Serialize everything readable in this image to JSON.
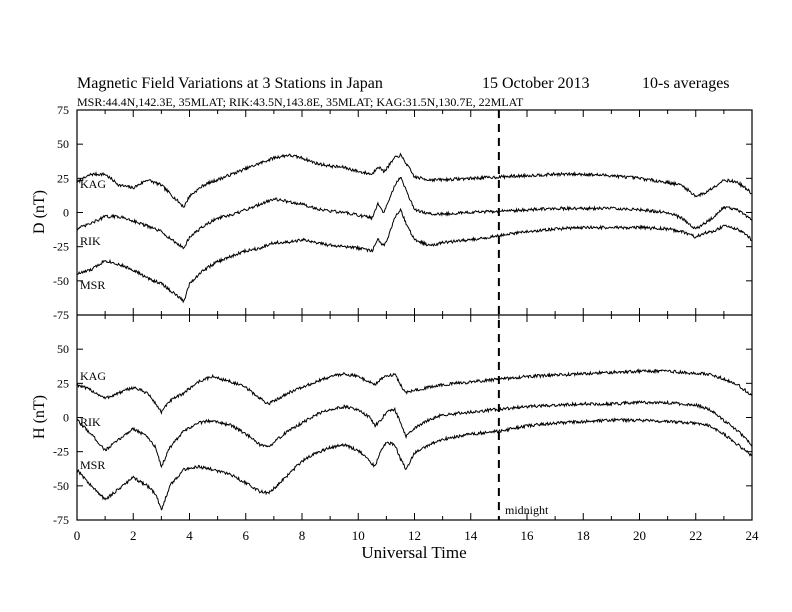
{
  "header": {
    "title": "Magnetic Field Variations at 3 Stations in Japan",
    "date": "15 October 2013",
    "averaging": "10-s averages",
    "stations_line": "MSR:44.4N,142.3E, 35MLAT;  RIK:43.5N,143.8E, 35MLAT;  KAG:31.5N,130.7E, 22MLAT"
  },
  "midnight_label": "midnight",
  "chart_data": [
    {
      "type": "line",
      "panel": "top",
      "ylabel": "D (nT)",
      "ylim": [
        -75,
        75
      ],
      "yticks": [
        75,
        50,
        25,
        0,
        -25,
        -50,
        -75
      ],
      "xlim": [
        0,
        24
      ],
      "x": [
        0,
        0.5,
        1,
        1.5,
        2,
        2.5,
        3,
        3.5,
        3.8,
        4,
        4.5,
        5,
        5.5,
        6,
        6.5,
        7,
        7.5,
        8,
        8.5,
        9,
        9.5,
        10,
        10.5,
        10.7,
        10.9,
        11,
        11.3,
        11.5,
        11.7,
        12,
        12.5,
        13,
        14,
        15,
        16,
        17,
        18,
        19,
        20,
        21,
        21.5,
        22,
        22.3,
        22.6,
        23,
        23.5,
        24
      ],
      "series": [
        {
          "name": "KAG",
          "values": [
            22,
            28,
            28,
            20,
            18,
            24,
            20,
            10,
            4,
            12,
            20,
            24,
            28,
            32,
            36,
            40,
            42,
            40,
            36,
            34,
            33,
            30,
            28,
            34,
            30,
            32,
            40,
            42,
            36,
            26,
            24,
            24,
            25,
            26,
            27,
            28,
            28,
            27,
            25,
            22,
            20,
            12,
            14,
            18,
            24,
            22,
            14
          ]
        },
        {
          "name": "RIK",
          "values": [
            -12,
            -8,
            -3,
            -3,
            -6,
            -10,
            -14,
            -22,
            -26,
            -18,
            -10,
            -4,
            -2,
            2,
            6,
            10,
            8,
            6,
            3,
            1,
            0,
            -2,
            -4,
            6,
            0,
            4,
            20,
            26,
            16,
            2,
            -1,
            -1,
            0,
            1,
            2,
            3,
            3,
            3,
            2,
            0,
            -4,
            -12,
            -8,
            -4,
            4,
            2,
            -6
          ]
        },
        {
          "name": "MSR",
          "values": [
            -45,
            -42,
            -35,
            -38,
            -42,
            -48,
            -52,
            -60,
            -65,
            -52,
            -42,
            -36,
            -32,
            -28,
            -26,
            -22,
            -22,
            -20,
            -22,
            -24,
            -25,
            -26,
            -28,
            -20,
            -24,
            -22,
            -4,
            2,
            -8,
            -20,
            -24,
            -22,
            -20,
            -17,
            -14,
            -12,
            -11,
            -11,
            -11,
            -12,
            -14,
            -18,
            -15,
            -14,
            -10,
            -12,
            -20
          ]
        }
      ]
    },
    {
      "type": "line",
      "panel": "bottom",
      "ylabel": "H (nT)",
      "ylim": [
        -75,
        75
      ],
      "yticks": [
        75,
        50,
        25,
        0,
        -25,
        -50,
        -75
      ],
      "xlim": [
        0,
        24
      ],
      "xlabel": "Universal Time",
      "xticks": [
        0,
        2,
        4,
        6,
        8,
        10,
        12,
        14,
        16,
        18,
        20,
        22,
        24
      ],
      "midnight_x": 15,
      "x": [
        0,
        0.5,
        1,
        1.5,
        2,
        2.5,
        2.8,
        3,
        3.3,
        3.8,
        4.3,
        4.8,
        5.5,
        6,
        6.5,
        6.8,
        7,
        7.5,
        8,
        8.5,
        9,
        9.5,
        10,
        10.4,
        10.6,
        10.8,
        11,
        11.3,
        11.5,
        11.7,
        12,
        12.5,
        13,
        14,
        15,
        16,
        17,
        18,
        19,
        20,
        21,
        22,
        22.5,
        23,
        23.5,
        24
      ],
      "series": [
        {
          "name": "KAG",
          "values": [
            24,
            20,
            14,
            18,
            22,
            18,
            10,
            4,
            12,
            18,
            26,
            30,
            26,
            22,
            14,
            10,
            12,
            18,
            22,
            26,
            30,
            32,
            30,
            26,
            24,
            28,
            30,
            32,
            24,
            18,
            20,
            22,
            24,
            26,
            28,
            30,
            31,
            32,
            33,
            34,
            34,
            32,
            32,
            28,
            24,
            16
          ]
        },
        {
          "name": "RIK",
          "values": [
            -2,
            -12,
            -24,
            -16,
            -8,
            -14,
            -22,
            -36,
            -22,
            -10,
            -4,
            -2,
            -6,
            -12,
            -20,
            -22,
            -18,
            -10,
            -4,
            2,
            6,
            8,
            6,
            0,
            -6,
            -2,
            4,
            6,
            -4,
            -14,
            -8,
            -2,
            2,
            4,
            6,
            8,
            9,
            10,
            10,
            11,
            11,
            9,
            6,
            -2,
            -10,
            -20
          ]
        },
        {
          "name": "MSR",
          "values": [
            -38,
            -50,
            -60,
            -52,
            -44,
            -50,
            -56,
            -68,
            -50,
            -38,
            -36,
            -38,
            -42,
            -48,
            -54,
            -55,
            -52,
            -42,
            -32,
            -26,
            -22,
            -20,
            -24,
            -32,
            -36,
            -24,
            -18,
            -20,
            -30,
            -38,
            -26,
            -20,
            -16,
            -12,
            -10,
            -6,
            -4,
            -3,
            -2,
            -2,
            -3,
            -4,
            -6,
            -12,
            -20,
            -28
          ]
        }
      ]
    }
  ]
}
